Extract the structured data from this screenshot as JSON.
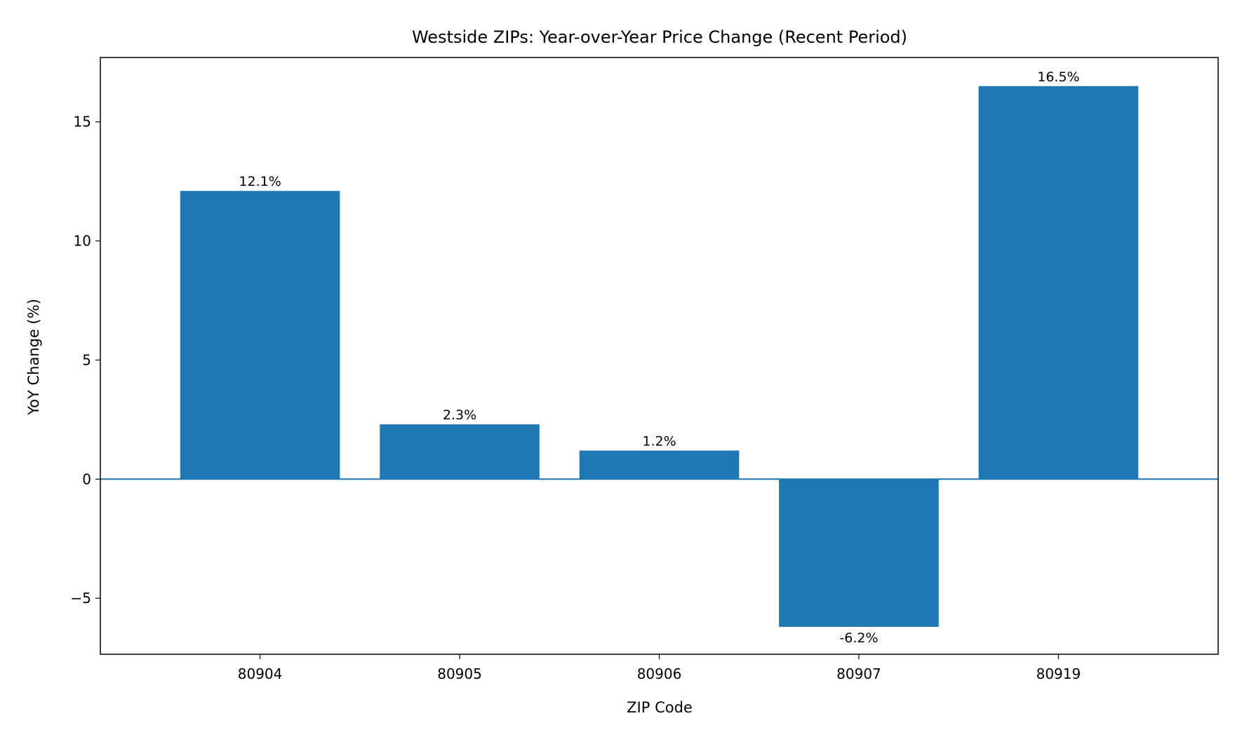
{
  "chart_data": {
    "type": "bar",
    "title": "Westside ZIPs: Year-over-Year Price Change (Recent Period)",
    "xlabel": "ZIP Code",
    "ylabel": "YoY Change (%)",
    "categories": [
      "80904",
      "80905",
      "80906",
      "80907",
      "80919"
    ],
    "values": [
      12.1,
      2.3,
      1.2,
      -6.2,
      16.5
    ],
    "data_labels": [
      "12.1%",
      "2.3%",
      "1.2%",
      "-6.2%",
      "16.5%"
    ],
    "ylim": [
      -7.35,
      17.7
    ],
    "yticks": [
      -5,
      0,
      5,
      10,
      15
    ],
    "ytick_labels": [
      "−5",
      "0",
      "5",
      "10",
      "15"
    ],
    "bar_color": "#1f77b4",
    "zero_line": true,
    "grid": false,
    "legend": "none"
  }
}
